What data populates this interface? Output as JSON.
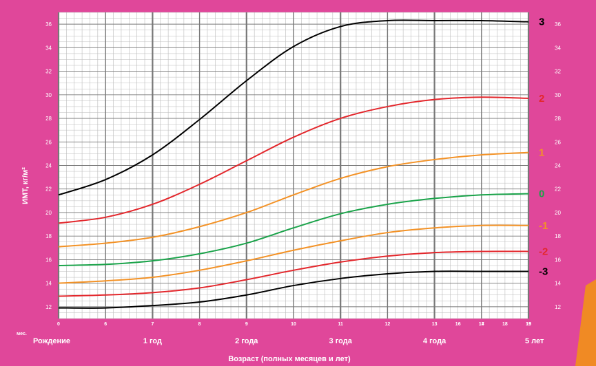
{
  "chart_data": {
    "type": "line",
    "ylabel": "ИМТ, кг/м²",
    "xlabel": "Возраст (полных месяцев и лет)",
    "ylim": [
      11,
      37
    ],
    "xlim": [
      0,
      60
    ],
    "y_ticks": [
      12,
      14,
      16,
      18,
      20,
      22,
      24,
      26,
      28,
      30,
      32,
      34,
      36
    ],
    "month_label": "мес.",
    "month_ticks": [
      {
        "x": 0,
        "label": "0"
      },
      {
        "x": 6,
        "label": "6"
      },
      {
        "x": 12,
        "label": "7"
      },
      {
        "x": 18,
        "label": "8"
      },
      {
        "x": 24,
        "label": "9"
      },
      {
        "x": 30,
        "label": "10"
      },
      {
        "x": 36,
        "label": "11"
      },
      {
        "x": 42,
        "label": "12"
      },
      {
        "x": 48,
        "label": "13"
      },
      {
        "x": 54,
        "label": "14"
      },
      {
        "x": 60,
        "label": "15"
      }
    ],
    "month_ticks_extra": [
      {
        "at": 51,
        "label": "16"
      },
      {
        "at": 54,
        "label": "17"
      },
      {
        "at": 57,
        "label": "18"
      },
      {
        "at": 60,
        "label": "19"
      }
    ],
    "year_labels": [
      {
        "x": 0,
        "label": "Рождение"
      },
      {
        "x": 12,
        "label": "1 год"
      },
      {
        "x": 24,
        "label": "2 года"
      },
      {
        "x": 36,
        "label": "3 года"
      },
      {
        "x": 48,
        "label": "4 года"
      },
      {
        "x": 60,
        "label": "5 лет"
      }
    ],
    "x": [
      0,
      6,
      12,
      18,
      24,
      30,
      36,
      42,
      48,
      54,
      60
    ],
    "series": [
      {
        "label": "3",
        "color": "#000000",
        "label_color": "#000000",
        "values": [
          21.5,
          22.8,
          24.9,
          27.9,
          31.2,
          34.1,
          35.8,
          36.3,
          36.3,
          36.3,
          36.2
        ]
      },
      {
        "label": "2",
        "color": "#e3272c",
        "label_color": "#e3272c",
        "values": [
          19.1,
          19.6,
          20.7,
          22.4,
          24.4,
          26.4,
          28.0,
          29.0,
          29.6,
          29.8,
          29.7
        ]
      },
      {
        "label": "1",
        "color": "#f39226",
        "label_color": "#f39226",
        "values": [
          17.1,
          17.4,
          17.9,
          18.8,
          20.0,
          21.5,
          22.9,
          23.9,
          24.5,
          24.9,
          25.1
        ]
      },
      {
        "label": "0",
        "color": "#1aa34a",
        "label_color": "#1aa34a",
        "values": [
          15.5,
          15.6,
          15.9,
          16.5,
          17.4,
          18.7,
          19.9,
          20.7,
          21.2,
          21.5,
          21.6
        ]
      },
      {
        "label": "-1",
        "color": "#f39226",
        "label_color": "#f39226",
        "values": [
          14.0,
          14.2,
          14.5,
          15.1,
          15.9,
          16.8,
          17.6,
          18.3,
          18.7,
          18.9,
          18.9
        ]
      },
      {
        "label": "-2",
        "color": "#e3272c",
        "label_color": "#e3272c",
        "values": [
          12.9,
          13.0,
          13.2,
          13.6,
          14.3,
          15.1,
          15.8,
          16.3,
          16.6,
          16.7,
          16.7
        ]
      },
      {
        "label": "-3",
        "color": "#000000",
        "label_color": "#000000",
        "values": [
          11.9,
          11.9,
          12.1,
          12.4,
          13.0,
          13.8,
          14.4,
          14.8,
          15.0,
          15.0,
          15.0
        ]
      }
    ],
    "colors": {
      "frame": "#e0479a",
      "grid_major": "#777777",
      "grid_minor": "#bbbbbb",
      "accent_tab": "#f08a24"
    }
  }
}
